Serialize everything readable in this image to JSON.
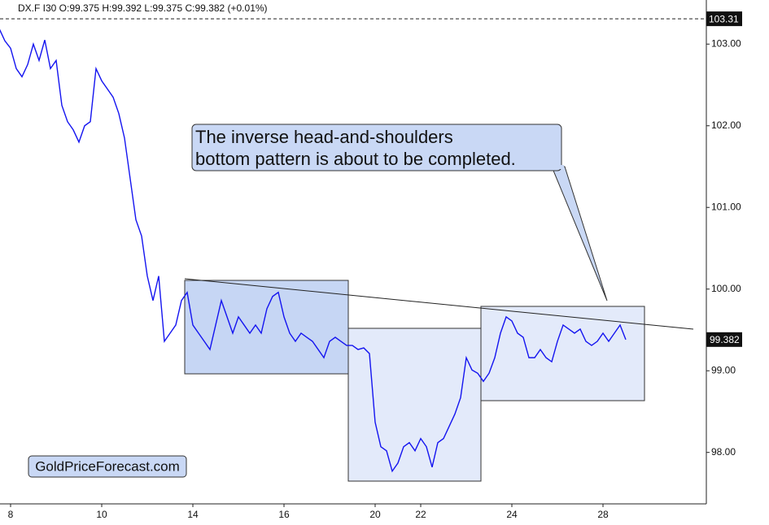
{
  "chart_data": {
    "type": "line",
    "header": "DX.F  I30  O:99.375  H:99.392  L:99.375  C:99.382  (+0.01%)",
    "annotation": [
      "The inverse head-and-shoulders",
      "bottom pattern is about to be completed."
    ],
    "watermark": "GoldPriceForecast.com",
    "reference_line": 103.31,
    "last_price": 99.382,
    "categories": [
      null,
      null,
      "8",
      null,
      null,
      null,
      null,
      null,
      null,
      null,
      null,
      null,
      null,
      null,
      null,
      null,
      null,
      null,
      "10",
      null,
      null,
      null,
      null,
      null,
      null,
      null,
      null,
      null,
      null,
      null,
      null,
      null,
      null,
      null,
      "14",
      null,
      null,
      null,
      null,
      null,
      null,
      null,
      null,
      null,
      null,
      null,
      null,
      null,
      null,
      null,
      "16",
      null,
      null,
      null,
      null,
      null,
      null,
      null,
      null,
      null,
      null,
      null,
      null,
      null,
      null,
      null,
      "20",
      null,
      null,
      null,
      null,
      null,
      null,
      null,
      "22",
      null,
      null,
      null,
      null,
      null,
      null,
      null,
      null,
      null,
      null,
      null,
      null,
      null,
      null,
      null,
      "24",
      null,
      null,
      null,
      null,
      null,
      null,
      null,
      null,
      null,
      null,
      null,
      null,
      null,
      null,
      null,
      "28",
      null,
      null,
      null,
      null
    ],
    "series": [
      {
        "name": "DX.F",
        "color": "#1414f0",
        "values": [
          103.19,
          103.04,
          102.95,
          102.7,
          102.6,
          102.75,
          103.0,
          102.8,
          103.05,
          102.7,
          102.8,
          102.25,
          102.05,
          101.95,
          101.8,
          102.0,
          102.05,
          102.7,
          102.55,
          102.45,
          102.35,
          102.15,
          101.85,
          101.35,
          100.85,
          100.65,
          100.16,
          99.86,
          100.16,
          99.36,
          99.46,
          99.56,
          99.86,
          99.96,
          99.56,
          99.46,
          99.36,
          99.26,
          99.56,
          99.86,
          99.66,
          99.46,
          99.66,
          99.56,
          99.46,
          99.56,
          99.46,
          99.76,
          99.91,
          99.96,
          99.66,
          99.46,
          99.36,
          99.46,
          99.41,
          99.36,
          99.26,
          99.16,
          99.36,
          99.41,
          99.36,
          99.31,
          99.31,
          99.26,
          99.28,
          99.21,
          98.37,
          98.07,
          98.02,
          97.77,
          97.87,
          98.07,
          98.12,
          98.02,
          98.17,
          98.07,
          97.82,
          98.12,
          98.17,
          98.32,
          98.47,
          98.67,
          99.16,
          99.01,
          98.97,
          98.87,
          98.97,
          99.16,
          99.46,
          99.66,
          99.61,
          99.46,
          99.41,
          99.16,
          99.16,
          99.26,
          99.16,
          99.11,
          99.36,
          99.56,
          99.51,
          99.46,
          99.51,
          99.36,
          99.31,
          99.36,
          99.46,
          99.36,
          99.46,
          99.56,
          99.382
        ]
      }
    ],
    "ylim": [
      97.37,
      103.54
    ],
    "yticks": [
      {
        "value": 98,
        "label": "98.00"
      },
      {
        "value": 99,
        "label": "99.00"
      },
      {
        "value": 100,
        "label": "100.00"
      },
      {
        "value": 101,
        "label": "101.00"
      },
      {
        "value": 102,
        "label": "102.00"
      },
      {
        "value": 103,
        "label": "103.00"
      }
    ],
    "grid": false
  }
}
